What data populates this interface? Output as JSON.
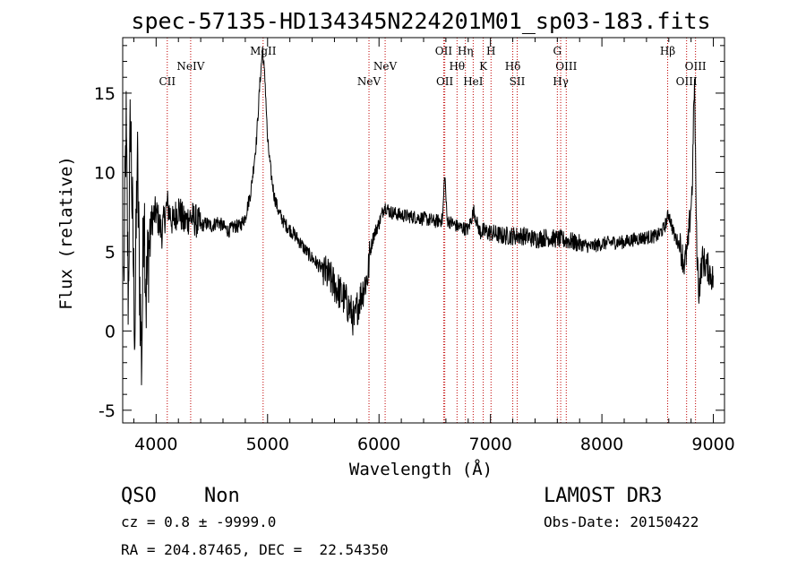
{
  "chart_data": {
    "type": "line",
    "title": "spec-57135-HD134345N224201M01_sp03-183.fits",
    "xlabel": "Wavelength (Å)",
    "ylabel": "Flux (relative)",
    "xlim": [
      3700,
      9100
    ],
    "ylim": [
      -5.8,
      18.5
    ],
    "x_ticks": [
      4000,
      5000,
      6000,
      7000,
      8000,
      9000
    ],
    "y_ticks": [
      -5,
      0,
      5,
      10,
      15
    ],
    "grid": false,
    "line_color": "#000000",
    "marker_color": "#c00000",
    "emission_lines": [
      {
        "label": "CII",
        "wavelength": 4100,
        "row": 3
      },
      {
        "label": "NeIV",
        "wavelength": 4310,
        "row": 2
      },
      {
        "label": "MgII",
        "wavelength": 4960,
        "row": 1
      },
      {
        "label": "NeV",
        "wavelength": 5910,
        "row": 3
      },
      {
        "label": "NeV",
        "wavelength": 6055,
        "row": 2
      },
      {
        "label": "OII",
        "wavelength": 6580,
        "row": 1
      },
      {
        "label": "OII",
        "wavelength": 6590,
        "row": 3
      },
      {
        "label": "Hθ",
        "wavelength": 6700,
        "row": 2
      },
      {
        "label": "Hη",
        "wavelength": 6775,
        "row": 1
      },
      {
        "label": "HeI",
        "wavelength": 6845,
        "row": 3
      },
      {
        "label": "K",
        "wavelength": 6935,
        "row": 2
      },
      {
        "label": "H",
        "wavelength": 7005,
        "row": 1
      },
      {
        "label": "Hδ",
        "wavelength": 7200,
        "row": 2
      },
      {
        "label": "SII",
        "wavelength": 7240,
        "row": 3
      },
      {
        "label": "G",
        "wavelength": 7600,
        "row": 1
      },
      {
        "label": "Hγ",
        "wavelength": 7630,
        "row": 3
      },
      {
        "label": "OIII",
        "wavelength": 7680,
        "row": 2
      },
      {
        "label": "Hβ",
        "wavelength": 8590,
        "row": 1
      },
      {
        "label": "OIII",
        "wavelength": 8760,
        "row": 3
      },
      {
        "label": "OIII",
        "wavelength": 8840,
        "row": 2
      }
    ],
    "spectrum_anchors": [
      [
        3710,
        3
      ],
      [
        3730,
        13
      ],
      [
        3750,
        2
      ],
      [
        3770,
        14
      ],
      [
        3790,
        6
      ],
      [
        3810,
        0
      ],
      [
        3830,
        11
      ],
      [
        3850,
        4
      ],
      [
        3870,
        -2
      ],
      [
        3890,
        9
      ],
      [
        3910,
        2
      ],
      [
        3930,
        5
      ],
      [
        3960,
        7
      ],
      [
        4000,
        7.5
      ],
      [
        4050,
        6.2
      ],
      [
        4100,
        8
      ],
      [
        4150,
        6.8
      ],
      [
        4200,
        7.8
      ],
      [
        4250,
        6.8
      ],
      [
        4300,
        7.2
      ],
      [
        4350,
        7
      ],
      [
        4400,
        6.6
      ],
      [
        4450,
        6.8
      ],
      [
        4500,
        6.6
      ],
      [
        4550,
        6.9
      ],
      [
        4600,
        6.6
      ],
      [
        4650,
        6.3
      ],
      [
        4700,
        6.6
      ],
      [
        4750,
        6.6
      ],
      [
        4800,
        7.2
      ],
      [
        4850,
        8.8
      ],
      [
        4900,
        12
      ],
      [
        4930,
        15.5
      ],
      [
        4955,
        17.8
      ],
      [
        4980,
        15.5
      ],
      [
        5000,
        12
      ],
      [
        5030,
        10
      ],
      [
        5060,
        8.5
      ],
      [
        5100,
        7.5
      ],
      [
        5150,
        6.8
      ],
      [
        5200,
        6.4
      ],
      [
        5250,
        6
      ],
      [
        5300,
        5.5
      ],
      [
        5350,
        5
      ],
      [
        5400,
        4.6
      ],
      [
        5450,
        4.2
      ],
      [
        5500,
        3.8
      ],
      [
        5550,
        3.4
      ],
      [
        5600,
        2.9
      ],
      [
        5650,
        2.4
      ],
      [
        5700,
        1.9
      ],
      [
        5750,
        1.2
      ],
      [
        5780,
        0.5
      ],
      [
        5800,
        1.4
      ],
      [
        5850,
        2.5
      ],
      [
        5900,
        3.5
      ],
      [
        5920,
        5
      ],
      [
        5950,
        6
      ],
      [
        6000,
        6.8
      ],
      [
        6050,
        7.9
      ],
      [
        6100,
        7.5
      ],
      [
        6200,
        7.3
      ],
      [
        6300,
        7.2
      ],
      [
        6400,
        7.1
      ],
      [
        6500,
        6.9
      ],
      [
        6570,
        7
      ],
      [
        6590,
        10
      ],
      [
        6610,
        7
      ],
      [
        6700,
        6.6
      ],
      [
        6800,
        6.4
      ],
      [
        6850,
        7.6
      ],
      [
        6900,
        6.3
      ],
      [
        7000,
        6.2
      ],
      [
        7100,
        6
      ],
      [
        7200,
        6
      ],
      [
        7300,
        6
      ],
      [
        7400,
        5.8
      ],
      [
        7500,
        5.9
      ],
      [
        7600,
        5.8
      ],
      [
        7700,
        5.7
      ],
      [
        7800,
        5.5
      ],
      [
        7900,
        5.3
      ],
      [
        8000,
        5.5
      ],
      [
        8100,
        5.6
      ],
      [
        8200,
        5.6
      ],
      [
        8300,
        5.8
      ],
      [
        8400,
        5.9
      ],
      [
        8500,
        6
      ],
      [
        8560,
        6.5
      ],
      [
        8600,
        7.4
      ],
      [
        8650,
        6
      ],
      [
        8700,
        5.4
      ],
      [
        8740,
        4.2
      ],
      [
        8770,
        5.2
      ],
      [
        8810,
        9
      ],
      [
        8830,
        16
      ],
      [
        8850,
        5.5
      ],
      [
        8870,
        2.5
      ],
      [
        8900,
        4.5
      ],
      [
        8950,
        4
      ],
      [
        9000,
        3.2
      ]
    ]
  },
  "info": {
    "class_label": "QSO",
    "subclass_label": "Non",
    "survey": "LAMOST DR3",
    "redshift": "cz = 0.8 ± -9999.0",
    "obs_date": "Obs-Date: 20150422",
    "coords": "RA = 204.87465, DEC =  22.54350"
  }
}
